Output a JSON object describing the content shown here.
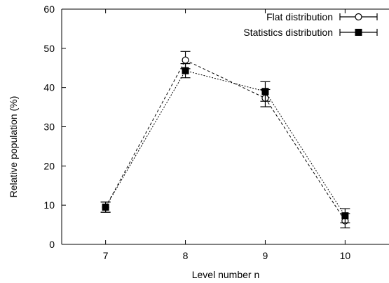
{
  "chart_data": {
    "type": "line",
    "xlabel": "Level number n",
    "ylabel": "Relative population (%)",
    "xlim": [
      6.45,
      10.55
    ],
    "ylim": [
      0,
      60
    ],
    "x_ticks": [
      7,
      8,
      9,
      10
    ],
    "y_ticks": [
      0,
      10,
      20,
      30,
      40,
      50,
      60
    ],
    "grid": false,
    "legend_position": "top-right",
    "series": [
      {
        "name": "Flat distribution",
        "marker": "open-circle",
        "line_style": "dashed",
        "x": [
          7,
          8,
          9,
          10
        ],
        "y": [
          9.5,
          47.0,
          37.3,
          6.0
        ],
        "yerr": [
          1.3,
          2.2,
          2.2,
          1.8
        ]
      },
      {
        "name": "Statistics distribution",
        "marker": "filled-square",
        "line_style": "dotted",
        "x": [
          7,
          8,
          9,
          10
        ],
        "y": [
          9.5,
          44.3,
          39.0,
          7.3
        ],
        "yerr": [
          1.3,
          1.8,
          2.5,
          1.8
        ]
      }
    ],
    "colors": {
      "axis": "#000000",
      "series": "#000000"
    }
  }
}
